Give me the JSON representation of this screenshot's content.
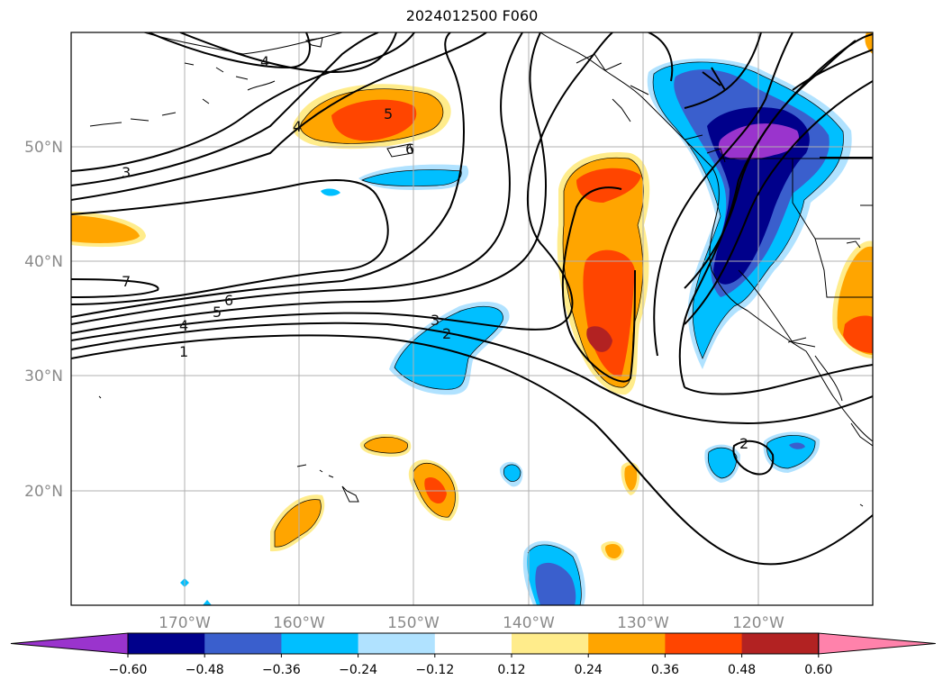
{
  "title": "2024012500 F060",
  "map": {
    "lon_labels": [
      "170°W",
      "160°W",
      "150°W",
      "140°W",
      "130°W",
      "120°W"
    ],
    "lat_labels": [
      "50°N",
      "40°N",
      "30°N",
      "20°N"
    ],
    "contour_labels": [
      "1",
      "2",
      "3",
      "4",
      "5",
      "6",
      "7",
      "4",
      "5",
      "3",
      "2",
      "6",
      "3",
      "2",
      "4"
    ]
  },
  "colorbar": {
    "ticks": [
      "−0.60",
      "−0.48",
      "−0.36",
      "−0.24",
      "−0.12",
      "0.12",
      "0.24",
      "0.36",
      "0.48",
      "0.60"
    ],
    "colors": [
      "#9a34cd",
      "#00008b",
      "#3a5fcd",
      "#00bfff",
      "#b0e2ff",
      "#ffffff",
      "#ffec8b",
      "#ffa500",
      "#ff4500",
      "#b22222",
      "#ff82ab"
    ]
  }
}
